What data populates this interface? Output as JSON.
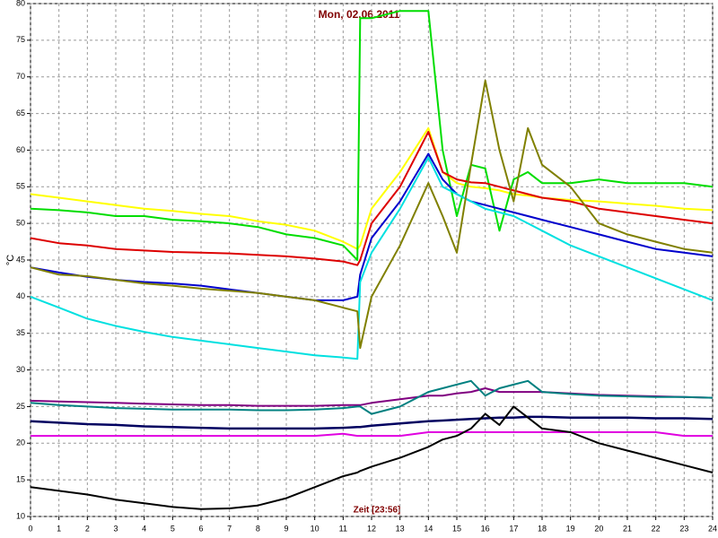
{
  "chart_data": {
    "type": "line",
    "title": "Mon, 02.06.2011",
    "xlabel": "Zeit [23:56]",
    "ylabel": "°C",
    "x": [
      0,
      1,
      2,
      3,
      4,
      5,
      6,
      7,
      8,
      9,
      10,
      11,
      11.5,
      11.6,
      12,
      13,
      14,
      14.5,
      15,
      15.5,
      16,
      16.5,
      17,
      17.5,
      18,
      19,
      20,
      21,
      22,
      23,
      24
    ],
    "series": [
      {
        "color": "#ffff00",
        "values": [
          54,
          53.5,
          53,
          52.5,
          52,
          51.7,
          51.3,
          51,
          50.3,
          49.8,
          49,
          47.5,
          46.5,
          47,
          52,
          57,
          63,
          57,
          55.5,
          55,
          54.8,
          54.5,
          54,
          53.8,
          53.5,
          53.2,
          53,
          52.7,
          52.4,
          52,
          51.8
        ]
      },
      {
        "color": "#00dd00",
        "values": [
          52,
          51.8,
          51.5,
          51,
          51,
          50.5,
          50.3,
          50,
          49.5,
          48.5,
          48,
          47,
          45,
          78,
          78,
          79,
          79,
          60,
          51,
          58,
          57.5,
          49,
          56,
          57,
          55.5,
          55.5,
          56,
          55.5,
          55.5,
          55.5,
          55
        ]
      },
      {
        "color": "#dd0000",
        "values": [
          48,
          47.3,
          47,
          46.5,
          46.3,
          46.1,
          46,
          45.9,
          45.7,
          45.5,
          45.2,
          44.8,
          44.3,
          45,
          50,
          55,
          62.5,
          57,
          56,
          55.6,
          55.5,
          55,
          54.5,
          54,
          53.5,
          53,
          52,
          51.5,
          51,
          50.5,
          50
        ]
      },
      {
        "color": "#0000cc",
        "values": [
          44,
          43.3,
          42.7,
          42.3,
          42,
          41.8,
          41.5,
          41,
          40.5,
          40,
          39.5,
          39.5,
          40,
          43,
          48,
          53,
          59.5,
          56,
          54,
          53,
          52.5,
          52,
          51.5,
          51,
          50.5,
          49.5,
          48.5,
          47.5,
          46.5,
          46,
          45.5
        ]
      },
      {
        "color": "#00e0e0",
        "values": [
          40,
          38.5,
          37,
          36,
          35.2,
          34.5,
          34,
          33.5,
          33,
          32.5,
          32,
          31.7,
          31.5,
          42,
          46,
          52,
          59,
          55,
          54,
          53,
          52,
          51.5,
          51,
          50,
          49,
          47,
          45.5,
          44,
          42.5,
          41,
          39.5
        ]
      },
      {
        "color": "#808000",
        "values": [
          44,
          43,
          42.8,
          42.3,
          41.8,
          41.5,
          41.1,
          40.8,
          40.5,
          40,
          39.5,
          38.5,
          38,
          33,
          40,
          47,
          55.5,
          51,
          46,
          58,
          69.5,
          60,
          53,
          63,
          58,
          55,
          50,
          48.5,
          47.5,
          46.5,
          46
        ]
      },
      {
        "color": "#800080",
        "values": [
          25.8,
          25.7,
          25.6,
          25.5,
          25.4,
          25.3,
          25.2,
          25.2,
          25.1,
          25.1,
          25.1,
          25.2,
          25.2,
          25.2,
          25.5,
          26,
          26.5,
          26.5,
          26.8,
          27,
          27.5,
          27,
          27,
          27,
          27,
          26.8,
          26.6,
          26.5,
          26.4,
          26.3,
          26.2
        ]
      },
      {
        "color": "#008080",
        "values": [
          25.5,
          25.2,
          25,
          24.8,
          24.7,
          24.6,
          24.6,
          24.6,
          24.5,
          24.5,
          24.6,
          24.8,
          25,
          25,
          24,
          25,
          27,
          27.5,
          28,
          28.5,
          26.5,
          27.5,
          28,
          28.5,
          27,
          26.7,
          26.5,
          26.4,
          26.3,
          26.3,
          26.2
        ]
      },
      {
        "color": "#000060",
        "values": [
          23,
          22.8,
          22.6,
          22.5,
          22.3,
          22.2,
          22.1,
          22,
          22,
          22,
          22,
          22.1,
          22.2,
          22.2,
          22.4,
          22.7,
          23,
          23.1,
          23.2,
          23.3,
          23.4,
          23.5,
          23.5,
          23.6,
          23.6,
          23.5,
          23.5,
          23.5,
          23.4,
          23.4,
          23.3
        ]
      },
      {
        "color": "#e000e0",
        "values": [
          21,
          21,
          21,
          21,
          21,
          21,
          21,
          21,
          21,
          21,
          21,
          21.3,
          21,
          21,
          21,
          21,
          21.5,
          21.5,
          21.5,
          21.5,
          21.5,
          21.5,
          21.5,
          21.5,
          21.5,
          21.5,
          21.5,
          21.5,
          21.5,
          21,
          21
        ]
      },
      {
        "color": "#000000",
        "values": [
          14,
          13.5,
          13,
          12.3,
          11.8,
          11.3,
          11,
          11.1,
          11.5,
          12.5,
          14,
          15.5,
          16,
          16.2,
          16.8,
          18,
          19.5,
          20.5,
          21,
          22,
          24,
          22.5,
          25,
          23.5,
          22,
          21.5,
          20,
          19,
          18,
          17,
          16
        ]
      }
    ],
    "xlim": [
      0,
      24
    ],
    "xticks": [
      0,
      1,
      2,
      3,
      4,
      5,
      6,
      7,
      8,
      9,
      10,
      11,
      12,
      13,
      14,
      15,
      16,
      17,
      18,
      19,
      20,
      21,
      22,
      23,
      24
    ],
    "ylim": [
      10,
      80
    ],
    "yticks": [
      10,
      15,
      20,
      25,
      30,
      35,
      40,
      45,
      50,
      55,
      60,
      65,
      70,
      75,
      80
    ],
    "grid": true
  }
}
